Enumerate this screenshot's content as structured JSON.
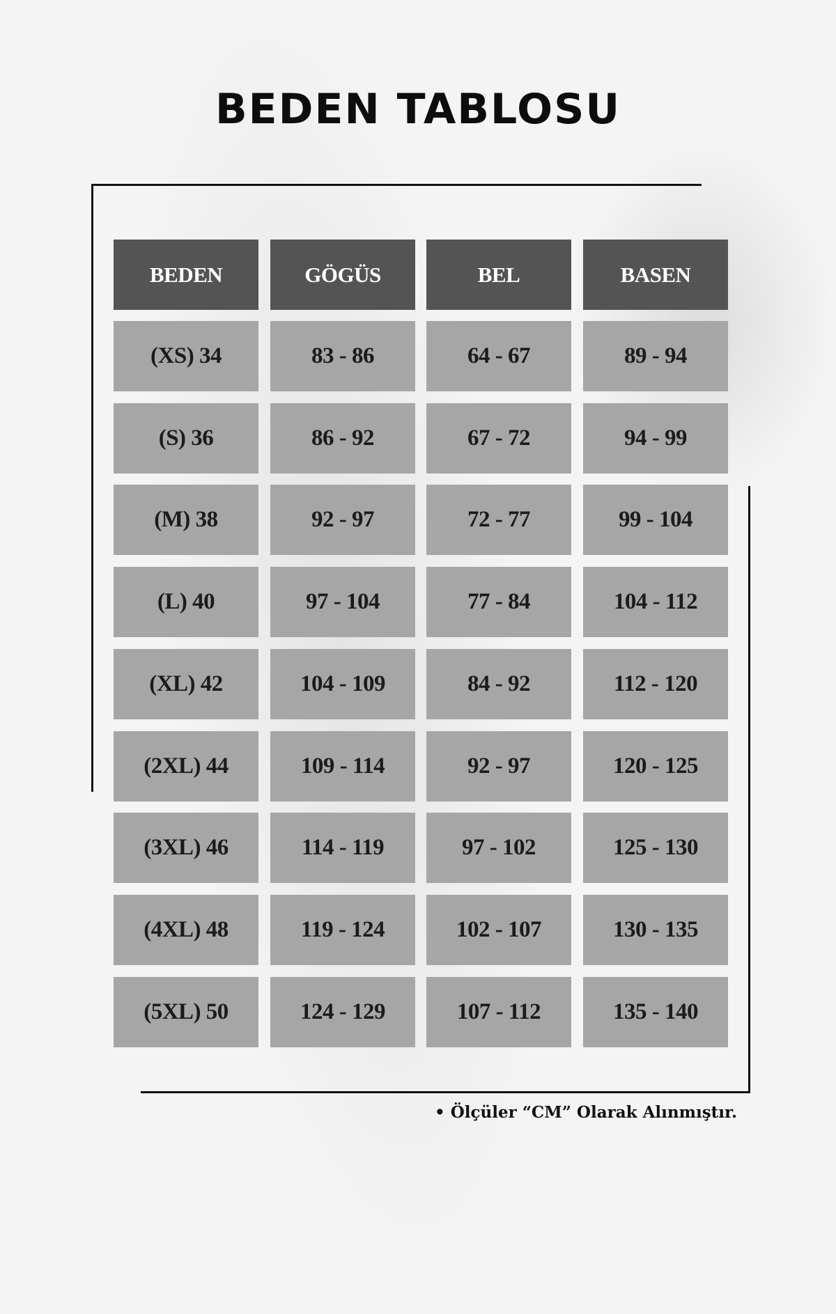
{
  "title": "BEDEN TABLOSU",
  "table": {
    "headers": [
      "BEDEN",
      "GÖGÜS",
      "BEL",
      "BASEN"
    ],
    "rows": [
      [
        "(XS) 34",
        "83 - 86",
        "64 - 67",
        "89 - 94"
      ],
      [
        "(S) 36",
        "86 - 92",
        "67 - 72",
        "94 - 99"
      ],
      [
        "(M) 38",
        "92 - 97",
        "72 - 77",
        "99 - 104"
      ],
      [
        "(L) 40",
        "97 - 104",
        "77 - 84",
        "104 - 112"
      ],
      [
        "(XL) 42",
        "104 - 109",
        "84 - 92",
        "112 - 120"
      ],
      [
        "(2XL) 44",
        "109 - 114",
        "92 - 97",
        "120 - 125"
      ],
      [
        "(3XL) 46",
        "114 - 119",
        "97 - 102",
        "125 - 130"
      ],
      [
        "(4XL) 48",
        "119 - 124",
        "102 - 107",
        "130 - 135"
      ],
      [
        "(5XL) 50",
        "124 - 129",
        "107 - 112",
        "135 - 140"
      ]
    ]
  },
  "note": "• Ölçüler “CM” Olarak Alınmıştır.",
  "colors": {
    "header_bg": "#545454",
    "cell_bg": "#a6a6a6",
    "header_text": "#ffffff",
    "cell_text": "#1b1b1b"
  }
}
